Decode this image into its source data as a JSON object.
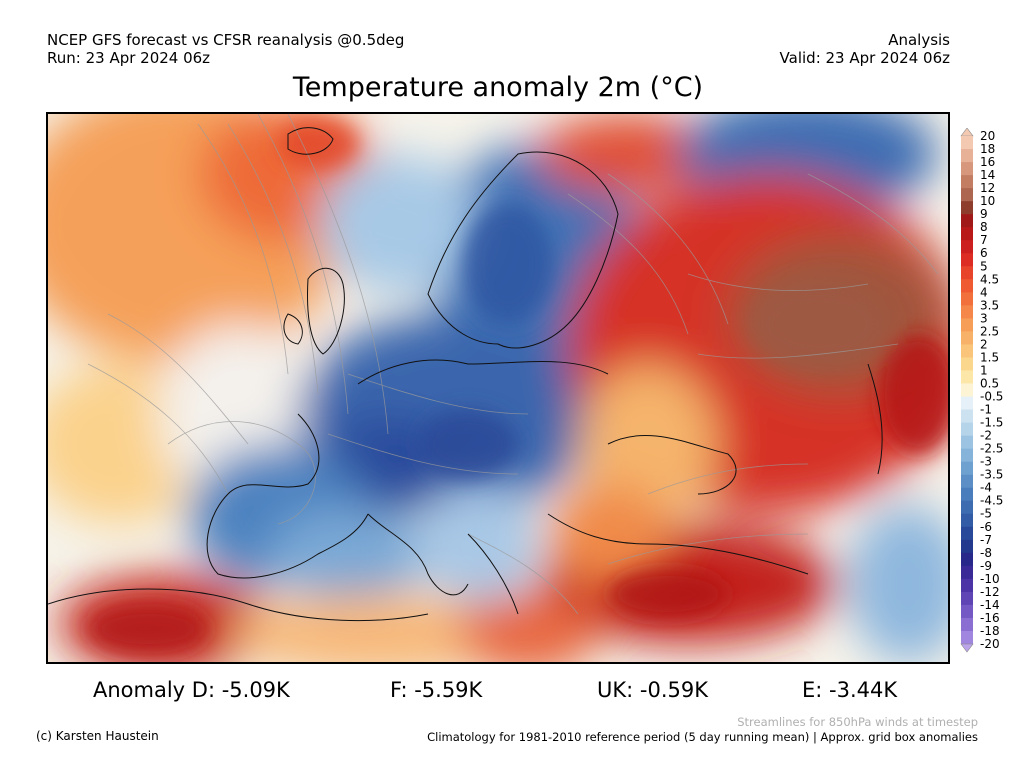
{
  "header": {
    "line1_left": "NCEP GFS forecast vs CFSR reanalysis @0.5deg",
    "line2_left": "Run: 23 Apr 2024 06z",
    "line1_right": "Analysis",
    "line2_right": "Valid: 23 Apr 2024 06z"
  },
  "title": "Temperature anomaly 2m (°C)",
  "legend": {
    "labels": [
      "20",
      "18",
      "16",
      "14",
      "12",
      "10",
      "9",
      "8",
      "7",
      "6",
      "5",
      "4.5",
      "4",
      "3.5",
      "3",
      "2.5",
      "2",
      "1.5",
      "1",
      "0.5",
      "-0.5",
      "-1",
      "-1.5",
      "-2",
      "-2.5",
      "-3",
      "-3.5",
      "-4",
      "-4.5",
      "-5",
      "-6",
      "-7",
      "-8",
      "-9",
      "-10",
      "-12",
      "-14",
      "-16",
      "-18",
      "-20"
    ],
    "colors": [
      "#f3c9b2",
      "#e7b198",
      "#d6977c",
      "#c27d63",
      "#ad6650",
      "#8e3c2c",
      "#a01818",
      "#b81818",
      "#cc2020",
      "#dd2c24",
      "#e8442c",
      "#ef5a33",
      "#f2703c",
      "#f5874a",
      "#f69d58",
      "#f8b168",
      "#fac57a",
      "#fbd78e",
      "#fce7a8",
      "#fdf4d6",
      "#e6f0f8",
      "#cde2f1",
      "#b5d4ea",
      "#9cc3e2",
      "#85b3da",
      "#6fa1d0",
      "#5b8fc6",
      "#4a7dbc",
      "#3d6cb1",
      "#325ca6",
      "#28499a",
      "#23398d",
      "#28288a",
      "#3a2a98",
      "#4c34a6",
      "#5f44b6",
      "#7458c4",
      "#8a6ed2",
      "#a086de",
      "#bca4ea"
    ]
  },
  "anomalies": {
    "d": "Anomaly D: -5.09K",
    "f": "F: -5.59K",
    "uk": "UK: -0.59K",
    "e": "E: -3.44K"
  },
  "footer": {
    "streamlines_note": "Streamlines for 850hPa winds at timestep",
    "copyright": "(c) Karsten Haustein",
    "climatology_note": "Climatology for 1981-2010 reference period (5 day running mean) | Approx. grid box anomalies"
  }
}
